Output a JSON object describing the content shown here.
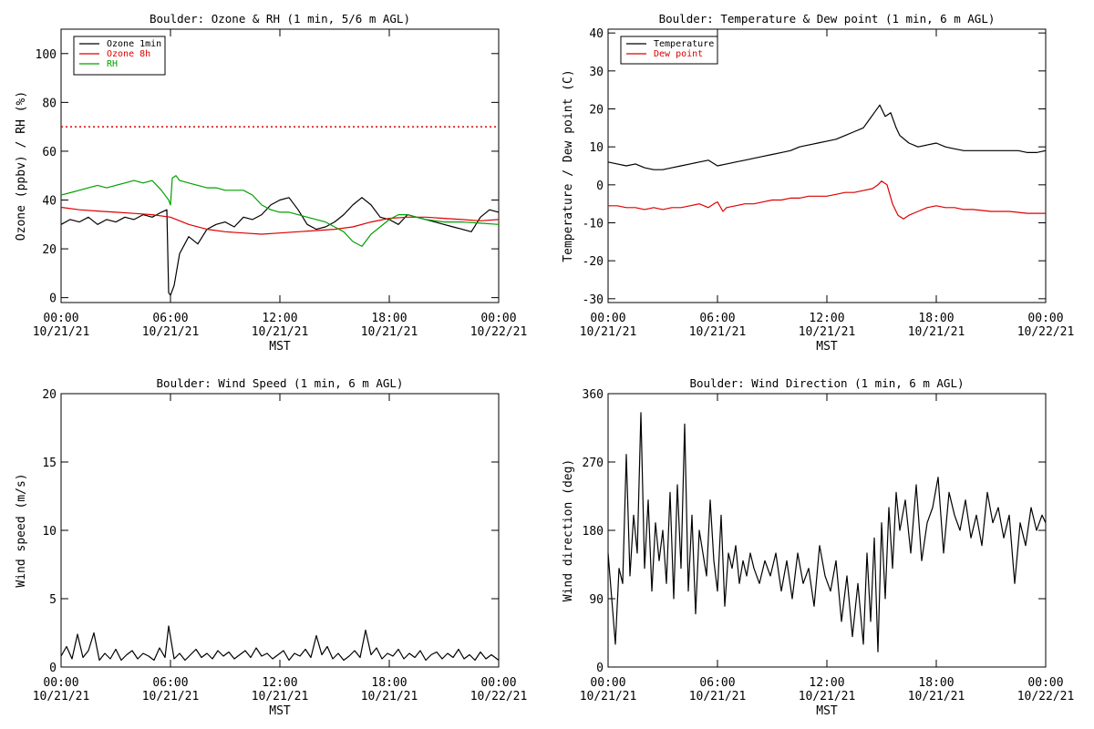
{
  "chart_data": [
    {
      "type": "line",
      "title": "Boulder: Ozone & RH (1 min, 5/6 m AGL)",
      "xlabel": "MST",
      "ylabel": "Ozone (ppbv) / RH (%)",
      "xlim": [
        0,
        24
      ],
      "ylim": [
        -2,
        110
      ],
      "yticks": [
        0,
        20,
        40,
        60,
        80,
        100
      ],
      "xticks": [
        {
          "time": "00:00",
          "date": "10/21/21"
        },
        {
          "time": "06:00",
          "date": "10/21/21"
        },
        {
          "time": "12:00",
          "date": "10/21/21"
        },
        {
          "time": "18:00",
          "date": "10/21/21"
        },
        {
          "time": "00:00",
          "date": "10/22/21"
        }
      ],
      "legend_position": "top-left",
      "reference_line": {
        "y": 70,
        "color": "#dd0000",
        "style": "dotted"
      },
      "series": [
        {
          "name": "Ozone 1min",
          "color": "#000000",
          "x": [
            0,
            0.5,
            1,
            1.5,
            2,
            2.5,
            3,
            3.5,
            4,
            4.5,
            5,
            5.5,
            5.8,
            5.9,
            6.0,
            6.2,
            6.5,
            7,
            7.5,
            8,
            8.5,
            9,
            9.5,
            10,
            10.5,
            11,
            11.5,
            12,
            12.5,
            13,
            13.5,
            14,
            14.5,
            15,
            15.5,
            16,
            16.5,
            17,
            17.5,
            18,
            18.5,
            19,
            19.5,
            20,
            20.5,
            21,
            21.5,
            22,
            22.5,
            23,
            23.5,
            24
          ],
          "y": [
            30,
            32,
            31,
            33,
            30,
            32,
            31,
            33,
            32,
            34,
            33,
            35,
            36,
            2,
            1,
            5,
            18,
            25,
            22,
            28,
            30,
            31,
            29,
            33,
            32,
            34,
            38,
            40,
            41,
            36,
            30,
            28,
            29,
            31,
            34,
            38,
            41,
            38,
            33,
            32,
            30,
            34,
            33,
            32,
            31,
            30,
            29,
            28,
            27,
            33,
            36,
            35
          ]
        },
        {
          "name": "Ozone 8h",
          "color": "#dd0000",
          "x": [
            0,
            1,
            2,
            3,
            4,
            5,
            6,
            7,
            8,
            9,
            10,
            11,
            12,
            13,
            14,
            15,
            16,
            17,
            18,
            19,
            20,
            21,
            22,
            23,
            24
          ],
          "y": [
            37,
            36,
            35.5,
            35,
            34.5,
            34,
            33,
            30,
            28,
            27,
            26.5,
            26,
            26.5,
            27,
            27.5,
            28,
            29,
            31,
            32.5,
            33,
            33,
            32.5,
            32,
            31.5,
            32
          ]
        },
        {
          "name": "RH",
          "color": "#00a000",
          "x": [
            0,
            0.5,
            1,
            1.5,
            2,
            2.5,
            3,
            3.5,
            4,
            4.5,
            5,
            5.5,
            5.9,
            6.0,
            6.1,
            6.3,
            6.5,
            7,
            7.5,
            8,
            8.5,
            9,
            9.5,
            10,
            10.5,
            11,
            11.5,
            12,
            12.5,
            13,
            13.5,
            14,
            14.5,
            15,
            15.5,
            16,
            16.5,
            17,
            17.5,
            18,
            18.5,
            19,
            19.5,
            20,
            21,
            22,
            23,
            24
          ],
          "y": [
            42,
            43,
            44,
            45,
            46,
            45,
            46,
            47,
            48,
            47,
            48,
            44,
            40,
            38,
            49,
            50,
            48,
            47,
            46,
            45,
            45,
            44,
            44,
            44,
            42,
            38,
            36,
            35,
            35,
            34,
            33,
            32,
            31,
            29,
            27,
            23,
            21,
            26,
            29,
            32,
            34,
            34,
            33,
            32,
            31,
            31,
            30.5,
            30
          ]
        }
      ]
    },
    {
      "type": "line",
      "title": "Boulder: Temperature & Dew point (1 min, 6 m AGL)",
      "xlabel": "MST",
      "ylabel": "Temperature / Dew point (C)",
      "xlim": [
        0,
        24
      ],
      "ylim": [
        -31,
        41
      ],
      "yticks": [
        -30,
        -20,
        -10,
        0,
        10,
        20,
        30,
        40
      ],
      "xticks": [
        {
          "time": "00:00",
          "date": "10/21/21"
        },
        {
          "time": "06:00",
          "date": "10/21/21"
        },
        {
          "time": "12:00",
          "date": "10/21/21"
        },
        {
          "time": "18:00",
          "date": "10/21/21"
        },
        {
          "time": "00:00",
          "date": "10/22/21"
        }
      ],
      "legend_position": "top-left",
      "series": [
        {
          "name": "Temperature",
          "color": "#000000",
          "x": [
            0,
            0.5,
            1,
            1.5,
            2,
            2.5,
            3,
            3.5,
            4,
            4.5,
            5,
            5.5,
            6,
            6.5,
            7,
            7.5,
            8,
            8.5,
            9,
            9.5,
            10,
            10.5,
            11,
            11.5,
            12,
            12.5,
            13,
            13.5,
            14,
            14.3,
            14.6,
            14.9,
            15.2,
            15.5,
            15.8,
            16,
            16.5,
            17,
            17.5,
            18,
            18.5,
            19,
            19.5,
            20,
            20.5,
            21,
            21.5,
            22,
            22.5,
            23,
            23.5,
            24
          ],
          "y": [
            6,
            5.5,
            5,
            5.5,
            4.5,
            4,
            4,
            4.5,
            5,
            5.5,
            6,
            6.5,
            5,
            5.5,
            6,
            6.5,
            7,
            7.5,
            8,
            8.5,
            9,
            10,
            10.5,
            11,
            11.5,
            12,
            13,
            14,
            15,
            17,
            19,
            21,
            18,
            19,
            15,
            13,
            11,
            10,
            10.5,
            11,
            10,
            9.5,
            9,
            9,
            9,
            9,
            9,
            9,
            9,
            8.5,
            8.5,
            9
          ]
        },
        {
          "name": "Dew point",
          "color": "#dd0000",
          "x": [
            0,
            0.5,
            1,
            1.5,
            2,
            2.5,
            3,
            3.5,
            4,
            4.5,
            5,
            5.5,
            5.8,
            6,
            6.3,
            6.5,
            7,
            7.5,
            8,
            8.5,
            9,
            9.5,
            10,
            10.5,
            11,
            11.5,
            12,
            12.5,
            13,
            13.5,
            14,
            14.5,
            14.8,
            15,
            15.3,
            15.6,
            15.9,
            16.2,
            16.5,
            17,
            17.5,
            18,
            18.5,
            19,
            19.5,
            20,
            21,
            22,
            23,
            24
          ],
          "y": [
            -5.5,
            -5.5,
            -6,
            -6,
            -6.5,
            -6,
            -6.5,
            -6,
            -6,
            -5.5,
            -5,
            -6,
            -5,
            -4.5,
            -7,
            -6,
            -5.5,
            -5,
            -5,
            -4.5,
            -4,
            -4,
            -3.5,
            -3.5,
            -3,
            -3,
            -3,
            -2.5,
            -2,
            -2,
            -1.5,
            -1,
            0,
            1,
            0,
            -5,
            -8,
            -9,
            -8,
            -7,
            -6,
            -5.5,
            -6,
            -6,
            -6.5,
            -6.5,
            -7,
            -7,
            -7.5,
            -7.5
          ]
        }
      ]
    },
    {
      "type": "line",
      "title": "Boulder: Wind Speed (1 min, 6 m AGL)",
      "xlabel": "MST",
      "ylabel": "Wind speed (m/s)",
      "xlim": [
        0,
        24
      ],
      "ylim": [
        0,
        20
      ],
      "yticks": [
        0,
        5,
        10,
        15,
        20
      ],
      "xticks": [
        {
          "time": "00:00",
          "date": "10/21/21"
        },
        {
          "time": "06:00",
          "date": "10/21/21"
        },
        {
          "time": "12:00",
          "date": "10/21/21"
        },
        {
          "time": "18:00",
          "date": "10/21/21"
        },
        {
          "time": "00:00",
          "date": "10/22/21"
        }
      ],
      "series": [
        {
          "color": "#000000",
          "x": [
            0,
            0.3,
            0.6,
            0.9,
            1.2,
            1.5,
            1.8,
            2.1,
            2.4,
            2.7,
            3.0,
            3.3,
            3.6,
            3.9,
            4.2,
            4.5,
            4.8,
            5.1,
            5.4,
            5.7,
            5.9,
            6.2,
            6.5,
            6.8,
            7.1,
            7.4,
            7.7,
            8.0,
            8.3,
            8.6,
            8.9,
            9.2,
            9.5,
            9.8,
            10.1,
            10.4,
            10.7,
            11.0,
            11.3,
            11.6,
            11.9,
            12.2,
            12.5,
            12.8,
            13.1,
            13.4,
            13.7,
            14.0,
            14.3,
            14.6,
            14.9,
            15.2,
            15.5,
            15.8,
            16.1,
            16.4,
            16.7,
            17.0,
            17.3,
            17.6,
            17.9,
            18.2,
            18.5,
            18.8,
            19.1,
            19.4,
            19.7,
            20.0,
            20.3,
            20.6,
            20.9,
            21.2,
            21.5,
            21.8,
            22.1,
            22.4,
            22.7,
            23.0,
            23.3,
            23.6,
            24
          ],
          "y": [
            0.8,
            1.5,
            0.6,
            2.4,
            0.7,
            1.2,
            2.5,
            0.5,
            1.0,
            0.6,
            1.3,
            0.5,
            0.9,
            1.2,
            0.6,
            1.0,
            0.8,
            0.5,
            1.4,
            0.7,
            3.0,
            0.6,
            1.0,
            0.5,
            0.9,
            1.3,
            0.7,
            1.0,
            0.6,
            1.2,
            0.8,
            1.1,
            0.6,
            0.9,
            1.2,
            0.7,
            1.4,
            0.8,
            1.0,
            0.6,
            0.9,
            1.2,
            0.5,
            1.0,
            0.8,
            1.3,
            0.7,
            2.3,
            0.9,
            1.5,
            0.6,
            1.0,
            0.5,
            0.8,
            1.2,
            0.7,
            2.7,
            0.9,
            1.4,
            0.6,
            1.0,
            0.8,
            1.3,
            0.6,
            1.0,
            0.7,
            1.2,
            0.5,
            0.9,
            1.1,
            0.6,
            1.0,
            0.7,
            1.3,
            0.6,
            0.9,
            0.5,
            1.1,
            0.6,
            0.9,
            0.5
          ]
        }
      ]
    },
    {
      "type": "line",
      "title": "Boulder: Wind Direction (1 min, 6 m AGL)",
      "xlabel": "MST",
      "ylabel": "Wind direction (deg)",
      "xlim": [
        0,
        24
      ],
      "ylim": [
        0,
        360
      ],
      "yticks": [
        0,
        90,
        180,
        270,
        360
      ],
      "xticks": [
        {
          "time": "00:00",
          "date": "10/21/21"
        },
        {
          "time": "06:00",
          "date": "10/21/21"
        },
        {
          "time": "12:00",
          "date": "10/21/21"
        },
        {
          "time": "18:00",
          "date": "10/21/21"
        },
        {
          "time": "00:00",
          "date": "10/22/21"
        }
      ],
      "series": [
        {
          "color": "#000000",
          "x": [
            0,
            0.2,
            0.4,
            0.6,
            0.8,
            1.0,
            1.2,
            1.4,
            1.6,
            1.8,
            2.0,
            2.2,
            2.4,
            2.6,
            2.8,
            3.0,
            3.2,
            3.4,
            3.6,
            3.8,
            4.0,
            4.2,
            4.4,
            4.6,
            4.8,
            5.0,
            5.2,
            5.4,
            5.6,
            5.8,
            6.0,
            6.2,
            6.4,
            6.6,
            6.8,
            7.0,
            7.2,
            7.4,
            7.6,
            7.8,
            8.0,
            8.3,
            8.6,
            8.9,
            9.2,
            9.5,
            9.8,
            10.1,
            10.4,
            10.7,
            11.0,
            11.3,
            11.6,
            11.9,
            12.2,
            12.5,
            12.8,
            13.1,
            13.4,
            13.7,
            14.0,
            14.2,
            14.4,
            14.6,
            14.8,
            15.0,
            15.2,
            15.4,
            15.6,
            15.8,
            16.0,
            16.3,
            16.6,
            16.9,
            17.2,
            17.5,
            17.8,
            18.1,
            18.4,
            18.7,
            19.0,
            19.3,
            19.6,
            19.9,
            20.2,
            20.5,
            20.8,
            21.1,
            21.4,
            21.7,
            22.0,
            22.3,
            22.6,
            22.9,
            23.2,
            23.5,
            23.8,
            24
          ],
          "y": [
            150,
            90,
            30,
            130,
            110,
            280,
            120,
            200,
            150,
            335,
            130,
            220,
            100,
            190,
            140,
            180,
            110,
            230,
            90,
            240,
            130,
            320,
            100,
            200,
            70,
            180,
            150,
            120,
            220,
            140,
            100,
            200,
            80,
            150,
            130,
            160,
            110,
            140,
            120,
            150,
            130,
            110,
            140,
            120,
            150,
            100,
            140,
            90,
            150,
            110,
            130,
            80,
            160,
            120,
            100,
            140,
            60,
            120,
            40,
            110,
            30,
            150,
            60,
            170,
            20,
            190,
            90,
            210,
            130,
            230,
            180,
            220,
            150,
            240,
            140,
            190,
            210,
            250,
            150,
            230,
            200,
            180,
            220,
            170,
            200,
            160,
            230,
            190,
            210,
            170,
            200,
            110,
            190,
            160,
            210,
            180,
            200,
            190
          ]
        }
      ]
    }
  ]
}
